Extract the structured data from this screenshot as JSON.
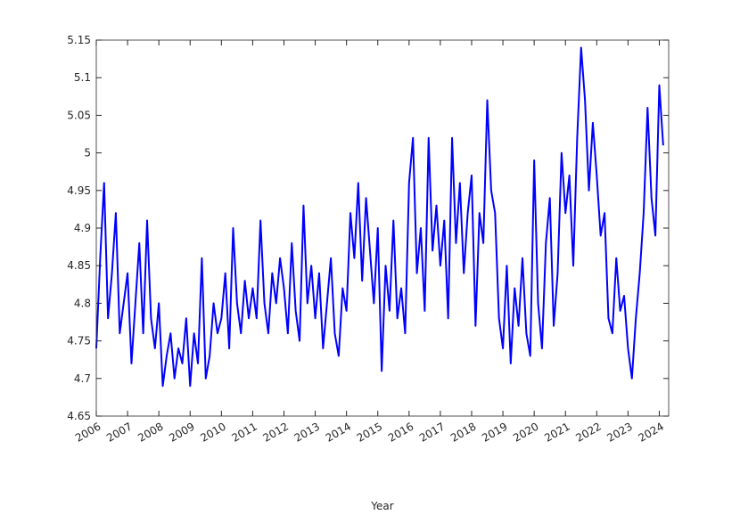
{
  "chart_data": {
    "type": "line",
    "x_label": "Year",
    "xlim": [
      2006,
      2024.3
    ],
    "ylim": [
      4.65,
      5.15
    ],
    "xticks": [
      2006,
      2007,
      2008,
      2009,
      2010,
      2011,
      2012,
      2013,
      2014,
      2015,
      2016,
      2017,
      2018,
      2019,
      2020,
      2021,
      2022,
      2023,
      2024
    ],
    "yticks": [
      4.65,
      4.7,
      4.75,
      4.8,
      4.85,
      4.9,
      4.95,
      5,
      5.05,
      5.1,
      5.15
    ],
    "series": [
      {
        "color": "#0000ff",
        "x": [
          2006,
          2006.125,
          2006.25,
          2006.375,
          2006.5,
          2006.625,
          2006.75,
          2006.875,
          2007,
          2007.125,
          2007.25,
          2007.375,
          2007.5,
          2007.625,
          2007.75,
          2007.875,
          2008,
          2008.125,
          2008.25,
          2008.375,
          2008.5,
          2008.625,
          2008.75,
          2008.875,
          2009,
          2009.125,
          2009.25,
          2009.375,
          2009.5,
          2009.625,
          2009.75,
          2009.875,
          2010,
          2010.125,
          2010.25,
          2010.375,
          2010.5,
          2010.625,
          2010.75,
          2010.875,
          2011,
          2011.125,
          2011.25,
          2011.375,
          2011.5,
          2011.625,
          2011.75,
          2011.875,
          2012,
          2012.125,
          2012.25,
          2012.375,
          2012.5,
          2012.625,
          2012.75,
          2012.875,
          2013,
          2013.125,
          2013.25,
          2013.375,
          2013.5,
          2013.625,
          2013.75,
          2013.875,
          2014,
          2014.125,
          2014.25,
          2014.375,
          2014.5,
          2014.625,
          2014.75,
          2014.875,
          2015,
          2015.125,
          2015.25,
          2015.375,
          2015.5,
          2015.625,
          2015.75,
          2015.875,
          2016,
          2016.125,
          2016.25,
          2016.375,
          2016.5,
          2016.625,
          2016.75,
          2016.875,
          2017,
          2017.125,
          2017.25,
          2017.375,
          2017.5,
          2017.625,
          2017.75,
          2017.875,
          2018,
          2018.125,
          2018.25,
          2018.375,
          2018.5,
          2018.625,
          2018.75,
          2018.875,
          2019,
          2019.125,
          2019.25,
          2019.375,
          2019.5,
          2019.625,
          2019.75,
          2019.875,
          2020,
          2020.125,
          2020.25,
          2020.375,
          2020.5,
          2020.625,
          2020.75,
          2020.875,
          2021,
          2021.125,
          2021.25,
          2021.375,
          2021.5,
          2021.625,
          2021.75,
          2021.875,
          2022,
          2022.125,
          2022.25,
          2022.375,
          2022.5,
          2022.625,
          2022.75,
          2022.875,
          2023,
          2023.125,
          2023.25,
          2023.375,
          2023.5,
          2023.625,
          2023.75,
          2023.875,
          2024,
          2024.125
        ],
        "values": [
          4.74,
          4.86,
          4.96,
          4.78,
          4.84,
          4.92,
          4.76,
          4.8,
          4.84,
          4.72,
          4.8,
          4.88,
          4.76,
          4.91,
          4.78,
          4.74,
          4.8,
          4.69,
          4.73,
          4.76,
          4.7,
          4.74,
          4.72,
          4.78,
          4.69,
          4.76,
          4.72,
          4.86,
          4.7,
          4.73,
          4.8,
          4.76,
          4.78,
          4.84,
          4.74,
          4.9,
          4.8,
          4.76,
          4.83,
          4.78,
          4.82,
          4.78,
          4.91,
          4.8,
          4.76,
          4.84,
          4.8,
          4.86,
          4.82,
          4.76,
          4.88,
          4.79,
          4.75,
          4.93,
          4.8,
          4.85,
          4.78,
          4.84,
          4.74,
          4.8,
          4.86,
          4.76,
          4.73,
          4.82,
          4.79,
          4.92,
          4.86,
          4.96,
          4.83,
          4.94,
          4.87,
          4.8,
          4.9,
          4.71,
          4.85,
          4.79,
          4.91,
          4.78,
          4.82,
          4.76,
          4.96,
          5.02,
          4.84,
          4.9,
          4.79,
          5.02,
          4.87,
          4.93,
          4.85,
          4.91,
          4.78,
          5.02,
          4.88,
          4.96,
          4.84,
          4.92,
          4.97,
          4.77,
          4.92,
          4.88,
          5.07,
          4.95,
          4.92,
          4.78,
          4.74,
          4.85,
          4.72,
          4.82,
          4.77,
          4.86,
          4.76,
          4.73,
          4.99,
          4.8,
          4.74,
          4.88,
          4.94,
          4.77,
          4.84,
          5.0,
          4.92,
          4.97,
          4.85,
          5.02,
          5.14,
          5.07,
          4.95,
          5.04,
          4.97,
          4.89,
          4.92,
          4.78,
          4.76,
          4.86,
          4.79,
          4.81,
          4.74,
          4.7,
          4.78,
          4.84,
          4.92,
          5.06,
          4.94,
          4.89,
          5.09,
          5.01
        ]
      }
    ]
  }
}
